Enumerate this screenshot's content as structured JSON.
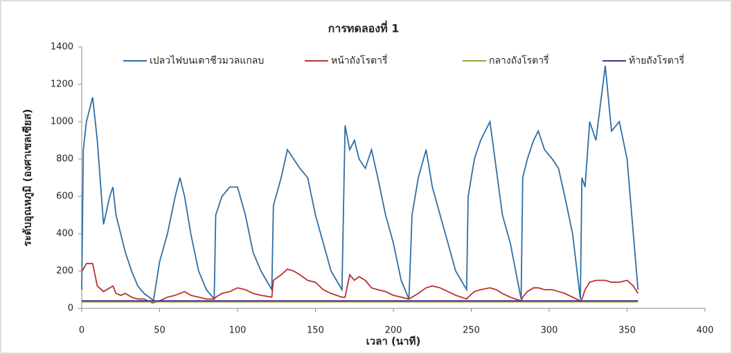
{
  "chart_data": {
    "type": "line",
    "title": "การทดลองที่ 1",
    "x_label": "เวลา (นาที)",
    "y_label": "ระดับอุณหภูมิ (องศาเซลเซียส)",
    "xlim": [
      0,
      400
    ],
    "xticks": [
      0,
      50,
      100,
      150,
      200,
      250,
      300,
      350,
      400
    ],
    "ylim": [
      0,
      1400
    ],
    "yticks": [
      0,
      200,
      400,
      600,
      800,
      1000,
      1200,
      1400
    ],
    "grid": false,
    "legend": "top",
    "x": [
      0,
      1,
      3,
      7,
      10,
      14,
      18,
      20,
      22,
      25,
      28,
      32,
      36,
      40,
      45,
      46,
      50,
      55,
      60,
      63,
      66,
      70,
      75,
      80,
      85,
      86,
      90,
      95,
      100,
      105,
      110,
      115,
      122,
      123,
      128,
      132,
      136,
      140,
      145,
      150,
      155,
      160,
      167,
      169,
      172,
      175,
      178,
      182,
      186,
      190,
      195,
      200,
      205,
      210,
      212,
      216,
      221,
      225,
      230,
      235,
      240,
      247,
      248,
      252,
      256,
      262,
      266,
      270,
      275,
      282,
      283,
      286,
      290,
      293,
      297,
      302,
      306,
      310,
      315,
      320,
      321,
      323,
      326,
      330,
      336,
      340,
      345,
      350,
      354,
      357
    ],
    "series": [
      {
        "name": "เปลวไฟบนเตาชีวมวลแกลบ",
        "color": "#2e6da4",
        "values": [
          100,
          850,
          1000,
          1130,
          900,
          450,
          600,
          650,
          500,
          400,
          300,
          200,
          120,
          80,
          50,
          40,
          250,
          400,
          600,
          700,
          600,
          400,
          200,
          100,
          50,
          500,
          600,
          650,
          650,
          500,
          300,
          200,
          100,
          550,
          700,
          850,
          800,
          750,
          700,
          500,
          350,
          200,
          100,
          980,
          850,
          900,
          800,
          750,
          850,
          700,
          500,
          350,
          150,
          50,
          500,
          700,
          850,
          650,
          500,
          350,
          200,
          100,
          600,
          800,
          900,
          1000,
          750,
          500,
          350,
          50,
          700,
          800,
          900,
          950,
          850,
          800,
          750,
          600,
          400,
          50,
          700,
          650,
          1000,
          900,
          1300,
          950,
          1000,
          800,
          400,
          100
        ]
      },
      {
        "name": "หน้าถังโรตารี่",
        "color": "#b8312f",
        "values": [
          200,
          210,
          240,
          240,
          120,
          90,
          110,
          120,
          80,
          70,
          80,
          60,
          50,
          50,
          30,
          30,
          40,
          60,
          70,
          80,
          90,
          70,
          60,
          50,
          50,
          60,
          80,
          90,
          110,
          100,
          80,
          70,
          60,
          150,
          180,
          210,
          200,
          180,
          150,
          140,
          100,
          80,
          60,
          60,
          180,
          150,
          170,
          150,
          110,
          100,
          90,
          70,
          60,
          50,
          60,
          80,
          110,
          120,
          110,
          90,
          70,
          50,
          60,
          90,
          100,
          110,
          100,
          80,
          60,
          40,
          60,
          90,
          110,
          110,
          100,
          100,
          90,
          80,
          60,
          40,
          50,
          100,
          140,
          150,
          150,
          140,
          140,
          150,
          120,
          80
        ]
      },
      {
        "name": "กลางถังโรตารี่",
        "color": "#8fa63e",
        "values": [
          35,
          35,
          35,
          35,
          35,
          35,
          35,
          35,
          35,
          35,
          35,
          35,
          35,
          35,
          35,
          35,
          35,
          35,
          35,
          35,
          35,
          35,
          35,
          35,
          35,
          35,
          35,
          35,
          35,
          35,
          35,
          35,
          35,
          35,
          35,
          35,
          35,
          35,
          35,
          35,
          35,
          35,
          35,
          35,
          35,
          35,
          35,
          35,
          35,
          35,
          35,
          35,
          35,
          35,
          35,
          35,
          35,
          35,
          35,
          35,
          35,
          35,
          35,
          35,
          35,
          35,
          35,
          35,
          35,
          35,
          35,
          35,
          35,
          35,
          35,
          35,
          35,
          35,
          35,
          35,
          35,
          35,
          35,
          35,
          35,
          35,
          35,
          35,
          35,
          35
        ]
      },
      {
        "name": "ท้ายถังโรตารี่",
        "color": "#4b2e83",
        "values": [
          40,
          40,
          40,
          40,
          40,
          40,
          40,
          40,
          40,
          40,
          40,
          40,
          40,
          40,
          40,
          40,
          40,
          40,
          40,
          40,
          40,
          40,
          40,
          40,
          40,
          40,
          40,
          40,
          40,
          40,
          40,
          40,
          40,
          40,
          40,
          40,
          40,
          40,
          40,
          40,
          40,
          40,
          40,
          40,
          40,
          40,
          40,
          40,
          40,
          40,
          40,
          40,
          40,
          40,
          40,
          40,
          40,
          40,
          40,
          40,
          40,
          40,
          40,
          40,
          40,
          40,
          40,
          40,
          40,
          40,
          40,
          40,
          40,
          40,
          40,
          40,
          40,
          40,
          40,
          40,
          40,
          40,
          40,
          40,
          40,
          40,
          40,
          40,
          40,
          40
        ]
      }
    ]
  }
}
